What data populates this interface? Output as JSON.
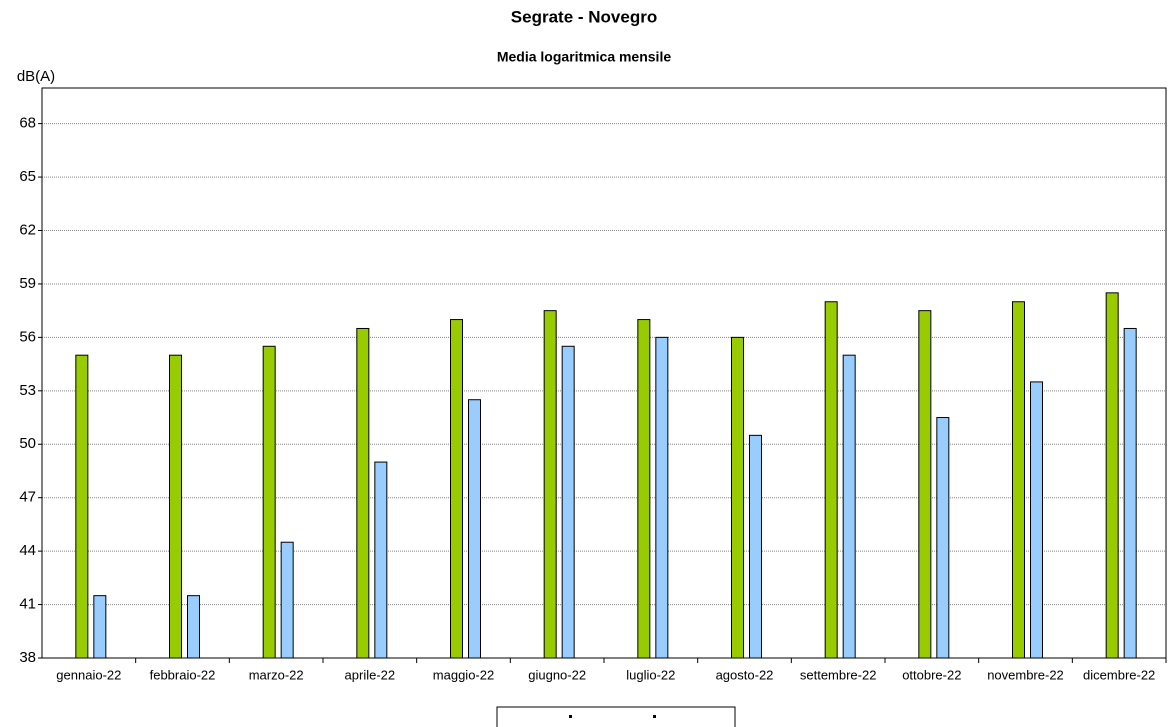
{
  "chart_data": {
    "type": "bar",
    "title": "Segrate - Novegro",
    "subtitle": "Media logaritmica mensile",
    "y_label": "dB(A)",
    "categories": [
      "gennaio-22",
      "febbraio-22",
      "marzo-22",
      "aprile-22",
      "maggio-22",
      "giugno-22",
      "luglio-22",
      "agosto-22",
      "settembre-22",
      "ottobre-22",
      "novembre-22",
      "dicembre-22"
    ],
    "series": [
      {
        "color": "#99cc00",
        "values": [
          55,
          55,
          55.5,
          56.5,
          57,
          57.5,
          57,
          56,
          58,
          57.5,
          58,
          58.5
        ]
      },
      {
        "color": "#99ccff",
        "values": [
          41.5,
          41.5,
          44.5,
          49,
          52.5,
          55.5,
          56,
          50.5,
          55,
          51.5,
          53.5,
          56.5
        ]
      }
    ],
    "ylim": [
      38,
      70
    ],
    "yticks": [
      38,
      41,
      44,
      47,
      50,
      53,
      56,
      59,
      62,
      65,
      68
    ],
    "grid": true
  }
}
